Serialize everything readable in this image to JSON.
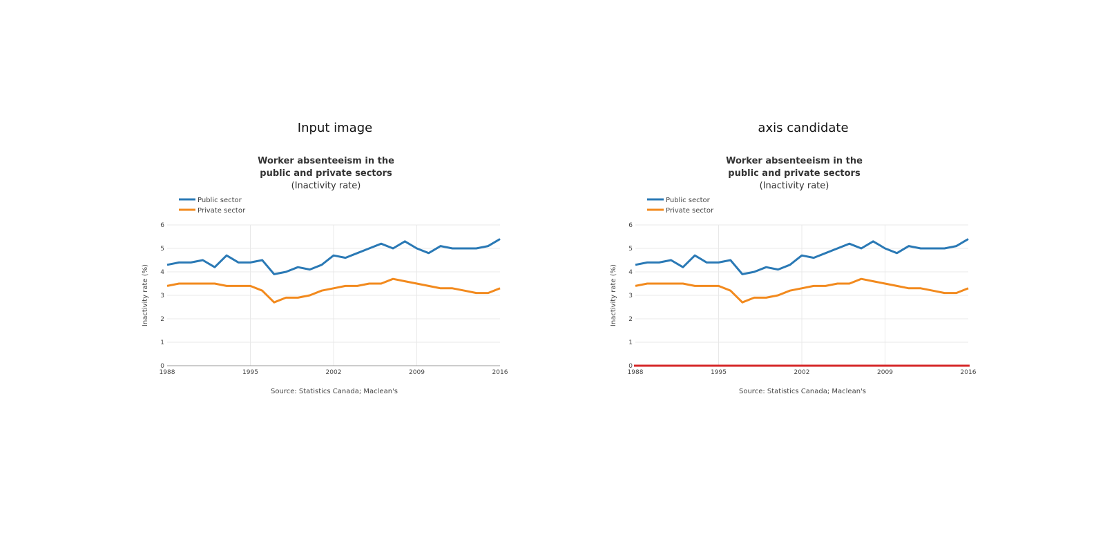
{
  "panels": [
    {
      "heading": "Input image",
      "show_axis_candidate": false
    },
    {
      "heading": "axis candidate",
      "show_axis_candidate": true
    }
  ],
  "colors": {
    "public": "#2a79b5",
    "private": "#f28a1e",
    "grid": "#e8e8e8",
    "axis_candidate": "#d62728",
    "text": "#444444",
    "title": "#333333"
  },
  "chart_data": {
    "type": "line",
    "title_line1": "Worker absenteeism in the",
    "title_line2": "public and private sectors",
    "subtitle": "(Inactivity rate)",
    "ylabel": "Inactivity rate (%)",
    "source": "Source: Statistics Canada; Maclean's",
    "xlim": [
      1988,
      2016
    ],
    "ylim": [
      0,
      6
    ],
    "x_ticks": [
      "1988",
      "1995",
      "2002",
      "2009",
      "2016"
    ],
    "y_ticks": [
      "0",
      "1",
      "2",
      "3",
      "4",
      "5",
      "6"
    ],
    "legend_position": "top-left",
    "x": [
      1988,
      1989,
      1990,
      1991,
      1992,
      1993,
      1994,
      1995,
      1996,
      1997,
      1998,
      1999,
      2000,
      2001,
      2002,
      2003,
      2004,
      2005,
      2006,
      2007,
      2008,
      2009,
      2010,
      2011,
      2012,
      2013,
      2014,
      2015,
      2016
    ],
    "series": [
      {
        "name": "Public sector",
        "values": [
          4.3,
          4.4,
          4.4,
          4.5,
          4.2,
          4.7,
          4.4,
          4.4,
          4.5,
          3.9,
          4.0,
          4.2,
          4.1,
          4.3,
          4.7,
          4.6,
          4.8,
          5.0,
          5.2,
          5.0,
          5.3,
          5.0,
          4.8,
          5.1,
          5.0,
          5.0,
          5.0,
          5.1,
          5.4
        ]
      },
      {
        "name": "Private sector",
        "values": [
          3.4,
          3.5,
          3.5,
          3.5,
          3.5,
          3.4,
          3.4,
          3.4,
          3.2,
          2.7,
          2.9,
          2.9,
          3.0,
          3.2,
          3.3,
          3.4,
          3.4,
          3.5,
          3.5,
          3.7,
          3.6,
          3.5,
          3.4,
          3.3,
          3.3,
          3.2,
          3.1,
          3.1,
          3.3
        ]
      }
    ]
  }
}
